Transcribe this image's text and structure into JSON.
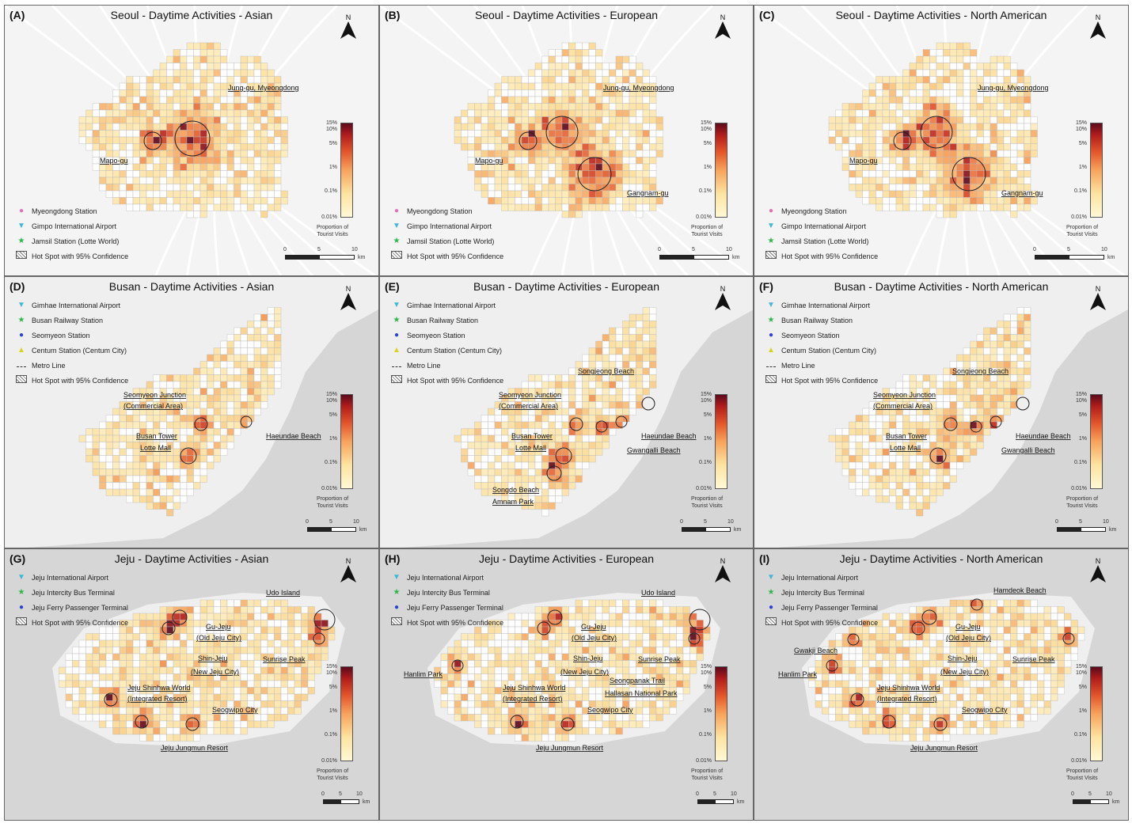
{
  "regions": {
    "seoul": {
      "legend": [
        {
          "icon": "magenta-dot-icon",
          "label": "Myeongdong Station",
          "color": "#e36fb3",
          "glyph": "●"
        },
        {
          "icon": "cyan-triangle-icon",
          "label": "Gimpo International Airport",
          "color": "#3fb7d6",
          "glyph": "▼"
        },
        {
          "icon": "green-star-icon",
          "label": "Jamsil Station (Lotte World)",
          "color": "#2db84a",
          "glyph": "★"
        },
        {
          "icon": "hatch-icon",
          "label": "Hot Spot with 95% Confidence",
          "glyph": ""
        }
      ]
    },
    "busan": {
      "legend": [
        {
          "icon": "cyan-triangle-icon",
          "label": "Gimhae International Airport",
          "color": "#3fb7d6",
          "glyph": "▼"
        },
        {
          "icon": "green-star-icon",
          "label": "Busan Railway Station",
          "color": "#2db84a",
          "glyph": "★"
        },
        {
          "icon": "blue-dot-icon",
          "label": "Seomyeon Station",
          "color": "#2c3fd6",
          "glyph": "●"
        },
        {
          "icon": "yellow-triangle-icon",
          "label": "Centum Station (Centum City)",
          "color": "#d9d21a",
          "glyph": "▲"
        },
        {
          "icon": "metro-line-icon",
          "label": "Metro Line",
          "glyph": ""
        },
        {
          "icon": "hatch-icon",
          "label": "Hot Spot with 95% Confidence",
          "glyph": ""
        }
      ]
    },
    "jeju": {
      "legend": [
        {
          "icon": "cyan-triangle-icon",
          "label": "Jeju International Airport",
          "color": "#3fb7d6",
          "glyph": "▼"
        },
        {
          "icon": "green-star-icon",
          "label": "Jeju Intercity Bus Terminal",
          "color": "#2db84a",
          "glyph": "★"
        },
        {
          "icon": "blue-dot-icon",
          "label": "Jeju Ferry Passenger Terminal",
          "color": "#2c3fd6",
          "glyph": "●"
        },
        {
          "icon": "hatch-icon",
          "label": "Hot Spot with 95% Confidence",
          "glyph": ""
        }
      ]
    }
  },
  "colorbar": {
    "ticks": [
      "15%",
      "10%",
      "5%",
      "1%",
      "0.1%",
      "0.01%"
    ],
    "caption_line1": "Proportion of",
    "caption_line2": "Tourist Visits"
  },
  "scalebar": {
    "ticks": [
      "0",
      "5",
      "10"
    ],
    "unit": "km"
  },
  "north_label": "N",
  "panels": [
    {
      "letter": "(A)",
      "title": "Seoul - Daytime Activities - Asian",
      "region": "seoul",
      "labels": [
        "Jung-gu, Myeongdong",
        "Mapo-gu"
      ]
    },
    {
      "letter": "(B)",
      "title": "Seoul - Daytime Activities - European",
      "region": "seoul",
      "labels": [
        "Jung-gu, Myeongdong",
        "Mapo-gu",
        "Gangnam-gu"
      ]
    },
    {
      "letter": "(C)",
      "title": "Seoul - Daytime Activities - North American",
      "region": "seoul",
      "labels": [
        "Jung-gu, Myeongdong",
        "Mapo-gu",
        "Gangnam-gu"
      ]
    },
    {
      "letter": "(D)",
      "title": "Busan - Daytime Activities - Asian",
      "region": "busan",
      "labels": [
        "Seomyeon Junction",
        "(Commercial Area)",
        "Busan Tower",
        "Lotte Mall",
        "Haeundae Beach"
      ]
    },
    {
      "letter": "(E)",
      "title": "Busan - Daytime Activities - European",
      "region": "busan",
      "labels": [
        "Songjeong Beach",
        "Seomyeon Junction",
        "(Commercial Area)",
        "Busan Tower",
        "Lotte Mall",
        "Haeundae Beach",
        "Gwangalli Beach",
        "Songdo Beach",
        "Amnam Park"
      ]
    },
    {
      "letter": "(F)",
      "title": "Busan - Daytime Activities - North American",
      "region": "busan",
      "labels": [
        "Songjeong Beach",
        "Seomyeon Junction",
        "(Commercial Area)",
        "Busan Tower",
        "Lotte Mall",
        "Haeundae Beach",
        "Gwangalli Beach"
      ]
    },
    {
      "letter": "(G)",
      "title": "Jeju - Daytime Activities - Asian",
      "region": "jeju",
      "labels": [
        "Udo Island",
        "Gu-Jeju",
        "(Old Jeju City)",
        "Shin-Jeju",
        "(New Jeju City)",
        "Sunrise Peak",
        "Jeju Shinhwa World",
        "(Integrated Resort)",
        "Seogwipo City",
        "Jeju Jungmun Resort"
      ]
    },
    {
      "letter": "(H)",
      "title": "Jeju - Daytime Activities - European",
      "region": "jeju",
      "labels": [
        "Udo Island",
        "Gu-Jeju",
        "(Old Jeju City)",
        "Shin-Jeju",
        "(New Jeju City)",
        "Sunrise Peak",
        "Hanlim Park",
        "Seongpanak Trail",
        "Hallasan National Park",
        "Jeju Shinhwa World",
        "(Integrated Resort)",
        "Seogwipo City",
        "Jeju Jungmun Resort"
      ]
    },
    {
      "letter": "(I)",
      "title": "Jeju - Daytime Activities - North American",
      "region": "jeju",
      "labels": [
        "Hamdeok Beach",
        "Gu-Jeju",
        "(Old Jeju City)",
        "Gwakji Beach",
        "Shin-Jeju",
        "(New Jeju City)",
        "Sunrise Peak",
        "Hanlim Park",
        "Jeju Shinhwa World",
        "(Integrated Resort)",
        "Seogwipo City",
        "Jeju Jungmun Resort"
      ]
    }
  ]
}
